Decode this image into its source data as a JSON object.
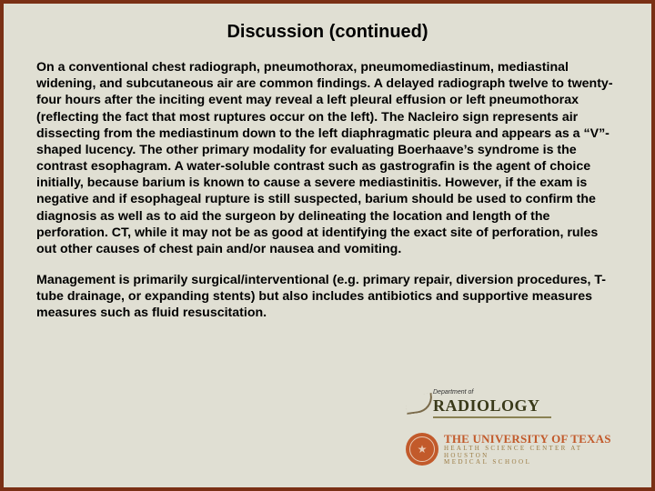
{
  "colors": {
    "border": "#7a3015",
    "background": "#e0dfd3",
    "text": "#000000",
    "ut_orange": "#c25a2b",
    "ut_gold": "#9a7a42"
  },
  "slide": {
    "title": "Discussion (continued)",
    "paragraph1": "On a conventional chest radiograph, pneumothorax, pneumomediastinum, mediastinal widening, and subcutaneous air are common findings. A delayed radiograph twelve to twenty-four hours after the inciting event may reveal a left pleural effusion or left pneumothorax (reflecting the fact that most ruptures occur on the left).  The Nacleiro sign represents air dissecting from the mediastinum down to the left diaphragmatic pleura and appears as a “V”-shaped lucency.  The other primary modality for evaluating Boerhaave’s syndrome is the contrast esophagram.  A water-soluble contrast such as gastrografin is the agent of choice initially, because barium is known to cause a severe mediastinitis.  However, if the exam is negative and if esophageal rupture is still suspected, barium should be used to confirm the diagnosis as well as to aid the surgeon by delineating the location and length of the perforation.  CT, while it may not be as good at identifying the exact site of perforation, rules out other causes of chest pain and/or nausea and vomiting.",
    "paragraph2": "Management is primarily surgical/interventional (e.g. primary repair, diversion procedures, T-tube drainage, or expanding stents) but also includes antibiotics and supportive measures measures such as fluid resuscitation."
  },
  "logo": {
    "dept_of": "Department of",
    "radiology": "RADIOLOGY",
    "ut_line1": "THE UNIVERSITY OF TEXAS",
    "ut_line2": "HEALTH SCIENCE CENTER AT HOUSTON",
    "ut_line3": "MEDICAL   SCHOOL"
  }
}
